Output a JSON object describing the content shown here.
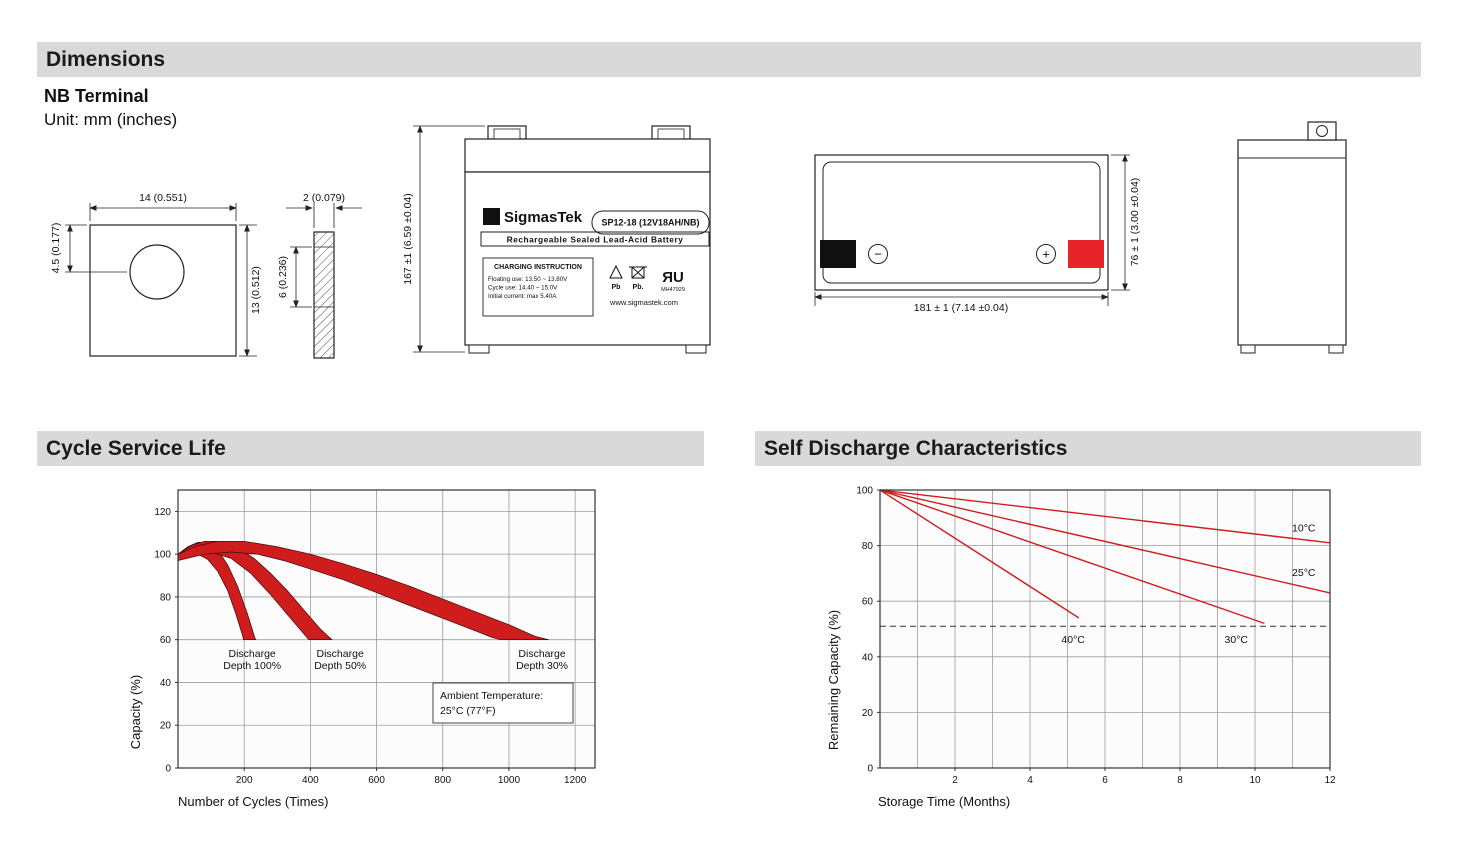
{
  "headers": {
    "dimensions": "Dimensions",
    "cycle_service_life": "Cycle Service Life",
    "self_discharge": "Self Discharge Characteristics"
  },
  "dimensions_section": {
    "terminal_type": "NB Terminal",
    "unit_note": "Unit: mm (inches)",
    "terminal_front": {
      "width": "14 (0.551)",
      "hole_offset": "4.5 (0.177)",
      "height": "13 (0.512)"
    },
    "terminal_side": {
      "thickness": "2 (0.079)",
      "depth": "6 (0.236)"
    },
    "front_view": {
      "height_dim": "167 ±1 (6.59 ±0.04)",
      "brand_sigma": "Σ",
      "brand": "SigmasTek",
      "model": "SP12-18 (12V18AH/NB)",
      "battery_type": "Rechargeable Sealed Lead-Acid Battery",
      "charging_title": "CHARGING INSTRUCTION",
      "charging_line1": "Floating use: 13.50 ~ 13.80V",
      "charging_line2": "Cycle use: 14.40 ~ 15.0V",
      "charging_line3": "Initial current: max 5.40A",
      "pb1": "Pb",
      "pb2": "Pb.",
      "ul_mark": "ЯU",
      "ul_code": "MH47929",
      "website": "www.sigmastek.com"
    },
    "top_view": {
      "width_dim": "181 ± 1 (7.14 ±0.04)",
      "depth_dim": "76 ± 1 (3.00 ±0.04)",
      "minus": "−",
      "plus": "+"
    }
  },
  "chart_data": [
    {
      "id": "cycle-life",
      "type": "area",
      "title": "Cycle Service Life",
      "xlabel": "Number of Cycles (Times)",
      "ylabel": "Capacity (%)",
      "xlim": [
        0,
        1260
      ],
      "ylim": [
        0,
        130
      ],
      "xticks": [
        200,
        400,
        600,
        800,
        1000,
        1200
      ],
      "yticks": [
        0,
        20,
        40,
        60,
        80,
        100,
        120
      ],
      "grid_x_step": 200,
      "grid_y_step": 20,
      "grid": true,
      "color": "#cf1d1d",
      "bands": [
        {
          "label": "Discharge Depth 100%",
          "upper": [
            [
              0,
              100
            ],
            [
              30,
              103.5
            ],
            [
              60,
              105.5
            ],
            [
              90,
              105.5
            ],
            [
              120,
              102
            ],
            [
              150,
              95
            ],
            [
              180,
              85
            ],
            [
              210,
              72
            ],
            [
              232,
              61
            ],
            [
              235,
              60
            ]
          ],
          "lower": [
            [
              0,
              97
            ],
            [
              30,
              99.5
            ],
            [
              60,
              100
            ],
            [
              90,
              97.5
            ],
            [
              120,
              92
            ],
            [
              150,
              83
            ],
            [
              175,
              72
            ],
            [
              195,
              62
            ],
            [
              198,
              60
            ]
          ]
        },
        {
          "label": "Discharge Depth 50%",
          "upper": [
            [
              0,
              100
            ],
            [
              40,
              104
            ],
            [
              80,
              106
            ],
            [
              130,
              106
            ],
            [
              180,
              103
            ],
            [
              230,
              98
            ],
            [
              280,
              91
            ],
            [
              330,
              83
            ],
            [
              380,
              74
            ],
            [
              430,
              65
            ],
            [
              465,
              60
            ]
          ],
          "lower": [
            [
              0,
              97
            ],
            [
              50,
              100
            ],
            [
              100,
              101
            ],
            [
              160,
              98
            ],
            [
              220,
              91
            ],
            [
              280,
              81
            ],
            [
              340,
              70
            ],
            [
              390,
              61
            ],
            [
              395,
              60
            ]
          ]
        },
        {
          "label": "Discharge Depth 30%",
          "upper": [
            [
              0,
              100
            ],
            [
              60,
              104
            ],
            [
              120,
              106
            ],
            [
              200,
              106
            ],
            [
              300,
              103.5
            ],
            [
              400,
              100
            ],
            [
              500,
              95.5
            ],
            [
              600,
              90.5
            ],
            [
              700,
              85
            ],
            [
              800,
              79
            ],
            [
              900,
              73
            ],
            [
              1000,
              67
            ],
            [
              1080,
              61.5
            ],
            [
              1120,
              60
            ]
          ],
          "lower": [
            [
              0,
              97
            ],
            [
              80,
              100
            ],
            [
              160,
              101
            ],
            [
              240,
              100
            ],
            [
              320,
              97
            ],
            [
              400,
              93
            ],
            [
              500,
              88
            ],
            [
              600,
              82
            ],
            [
              700,
              76
            ],
            [
              800,
              70
            ],
            [
              900,
              64
            ],
            [
              950,
              61
            ],
            [
              975,
              60
            ]
          ]
        }
      ],
      "band_labels": [
        {
          "line1": "Discharge",
          "line2": "Depth 100%",
          "x": 224,
          "y": 52
        },
        {
          "line1": "Discharge",
          "line2": "Depth 50%",
          "x": 490,
          "y": 52
        },
        {
          "line1": "Discharge",
          "line2": "Depth 30%",
          "x": 1100,
          "y": 52
        }
      ],
      "note": {
        "line1": "Ambient Temperature:",
        "line2": "25°C (77°F)"
      }
    },
    {
      "id": "self-discharge",
      "type": "line",
      "title": "Self Discharge Characteristics",
      "xlabel": "Storage Time (Months)",
      "ylabel": "Remaining Capacity (%)",
      "xlim": [
        0,
        12
      ],
      "ylim": [
        0,
        100
      ],
      "xticks": [
        2,
        4,
        6,
        8,
        10,
        12
      ],
      "yticks": [
        0,
        20,
        40,
        60,
        80,
        100
      ],
      "grid_x_step": 1,
      "grid_y_step": 20,
      "grid": true,
      "color": "#cf1d1d",
      "dashed_y": 51,
      "series": [
        {
          "name": "10°C",
          "points": [
            [
              0,
              100
            ],
            [
              12,
              81
            ]
          ],
          "label_pos": [
            11.3,
            85
          ]
        },
        {
          "name": "25°C",
          "points": [
            [
              0,
              100
            ],
            [
              12,
              63
            ]
          ],
          "label_pos": [
            11.3,
            69
          ]
        },
        {
          "name": "30°C",
          "points": [
            [
              0,
              100
            ],
            [
              10.25,
              52
            ]
          ],
          "label_pos": [
            9.5,
            45
          ]
        },
        {
          "name": "40°C",
          "points": [
            [
              0,
              100
            ],
            [
              5.3,
              54
            ]
          ],
          "label_pos": [
            5.15,
            45
          ]
        }
      ]
    }
  ]
}
